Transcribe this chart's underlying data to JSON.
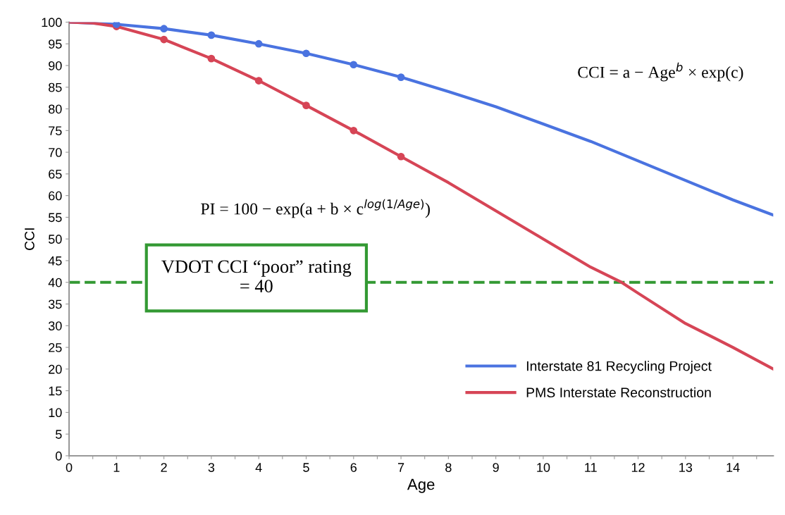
{
  "chart_data": {
    "type": "line",
    "xlabel": "Age",
    "ylabel": "CCI",
    "series": [
      {
        "name": "Interstate 81 Recycling Project",
        "color": "#4a73e0",
        "marker": "none",
        "x": [
          0,
          1,
          2,
          3,
          4,
          5,
          6,
          7,
          8,
          9,
          10,
          11,
          12,
          13,
          14,
          14.85
        ],
        "values": [
          100,
          99.5,
          98.5,
          97,
          95,
          92.8,
          90.2,
          87.3,
          84,
          80.5,
          76.5,
          72.5,
          68,
          63.5,
          59,
          55.5
        ]
      },
      {
        "name": "PMS Interstate Reconstruction",
        "color": "#d64556",
        "marker": "none",
        "x": [
          0,
          0.5,
          1,
          2,
          3,
          4,
          5,
          6,
          7,
          8,
          9,
          10,
          11,
          11.65,
          12,
          13,
          14,
          14.85
        ],
        "values": [
          100,
          99.8,
          99,
          96,
          91.6,
          86.5,
          80.8,
          75,
          69,
          63,
          56.5,
          50,
          43.5,
          40,
          37.5,
          30.5,
          25,
          20
        ]
      },
      {
        "type": "scatter",
        "color": "#4a73e0",
        "marker": "circle",
        "x": [
          1,
          2,
          3,
          4,
          5,
          6,
          7
        ],
        "values": [
          99.5,
          98.5,
          97,
          95,
          92.8,
          90.2,
          87.3
        ]
      },
      {
        "type": "scatter",
        "color": "#d64556",
        "marker": "circle",
        "x": [
          1,
          2,
          3,
          4,
          5,
          6,
          7
        ],
        "values": [
          99,
          96,
          91.6,
          86.5,
          80.8,
          75,
          69
        ]
      }
    ],
    "xlim": [
      0,
      14.85
    ],
    "ylim": [
      0,
      100
    ],
    "xticks": [
      0,
      {
        "value": 0.5,
        "label": null
      },
      1,
      {
        "value": 1.5,
        "label": null
      },
      2,
      {
        "value": 2.5,
        "label": null
      },
      3,
      {
        "value": 3.5,
        "label": null
      },
      4,
      {
        "value": 4.5,
        "label": null
      },
      5,
      {
        "value": 5.5,
        "label": null
      },
      6,
      {
        "value": 6.5,
        "label": null
      },
      7,
      {
        "value": 7.5,
        "label": null
      },
      8,
      {
        "value": 8.5,
        "label": null
      },
      9,
      {
        "value": 9.5,
        "label": null
      },
      10,
      {
        "value": 10.5,
        "label": null
      },
      11,
      {
        "value": 11.5,
        "label": null
      },
      12,
      {
        "value": 12.5,
        "label": null
      },
      13,
      {
        "value": 13.5,
        "label": null
      },
      14,
      {
        "value": 14.5,
        "label": null
      }
    ],
    "yticks": [
      0,
      5,
      10,
      15,
      20,
      25,
      30,
      35,
      40,
      45,
      50,
      55,
      60,
      65,
      70,
      75,
      80,
      85,
      90,
      95,
      100
    ],
    "ref_lines": [
      {
        "axis": "y",
        "value": 40,
        "label": "VDOT CCI “poor” rating\n= 40",
        "color": "#339933",
        "line_style": "dashed"
      }
    ],
    "annotations": [
      {
        "text": "CCI = a − Age$^{b}$ × exp(c)"
      },
      {
        "text": "PI = 100 − exp(a + b × c$^{log(1/Age)}$)"
      }
    ],
    "grid": false,
    "legend": "bottom right"
  }
}
